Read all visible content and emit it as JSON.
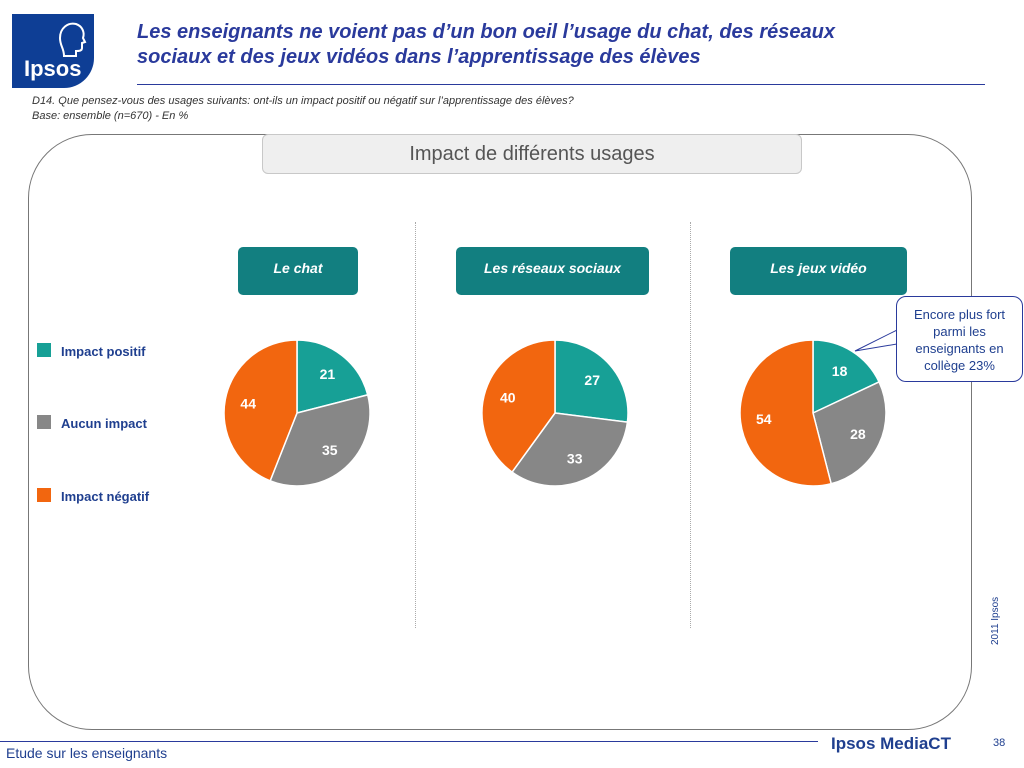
{
  "logo": {
    "text": "Ipsos"
  },
  "header": {
    "title_line1": "Les enseignants ne voient pas d’un bon oeil l’usage du chat, des réseaux",
    "title_line2": "sociaux et des jeux vidéos dans l’apprentissage des élèves"
  },
  "question": {
    "text": "D14. Que pensez-vous des usages suivants: ont-ils un impact positif ou négatif sur l’apprentissage des élèves?",
    "base": "Base: ensemble (n=670) - En %"
  },
  "banner": {
    "title": "Impact de différents usages"
  },
  "chart_data": {
    "type": "pie",
    "title": "Impact de différents usages",
    "legend": [
      "Impact positif",
      "Aucun impact",
      "Impact négatif"
    ],
    "legend_placement": "left",
    "colors": [
      "#17a096",
      "#878787",
      "#f2660f"
    ],
    "charts": [
      {
        "name": "Le chat",
        "labels": [
          "Impact positif",
          "Aucun impact",
          "Impact négatif"
        ],
        "values": [
          21,
          35,
          44
        ]
      },
      {
        "name": "Les réseaux sociaux",
        "labels": [
          "Impact positif",
          "Aucun impact",
          "Impact négatif"
        ],
        "values": [
          27,
          33,
          40
        ]
      },
      {
        "name": "Les jeux vidéo",
        "labels": [
          "Impact positif",
          "Aucun impact",
          "Impact négatif"
        ],
        "values": [
          18,
          28,
          54
        ]
      }
    ]
  },
  "callout": {
    "text": "Encore plus fort parmi les enseignants en collège 23%"
  },
  "copyright": "2011 Ipsos",
  "footer": {
    "left": "Etude sur les enseignants",
    "brand": "Ipsos MediaCT",
    "page": "38"
  }
}
